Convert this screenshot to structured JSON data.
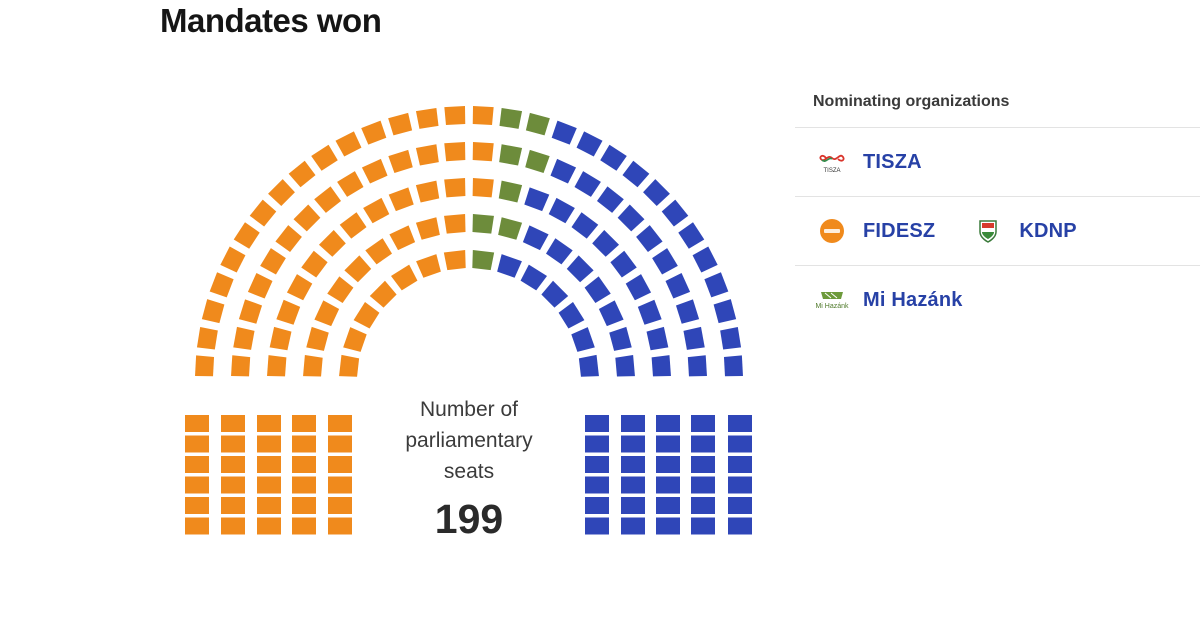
{
  "title": "Mandates won",
  "center": {
    "label": "Number of parliamentary seats",
    "total": "199"
  },
  "legend": {
    "heading": "Nominating organizations",
    "rows": [
      [
        {
          "name": "TISZA",
          "icon": "tisza-logo-icon",
          "color": "#2f46b8"
        }
      ],
      [
        {
          "name": "FIDESZ",
          "icon": "fidesz-logo-icon",
          "color": "#f08a1c"
        },
        {
          "name": "KDNP",
          "icon": "kdnp-shield-icon",
          "color": "#f08a1c"
        }
      ],
      [
        {
          "name": "Mi Hazánk",
          "icon": "mi-hazank-logo-icon",
          "color": "#6d8c3b"
        }
      ]
    ]
  },
  "chart_data": {
    "type": "parliament",
    "total_seats": 199,
    "series": [
      {
        "name": "TISZA",
        "seats": 102,
        "color": "#2f46b8"
      },
      {
        "name": "FIDESZ",
        "seats": 88,
        "color": "#f08a1c"
      },
      {
        "name": "Mi Hazánk",
        "seats": 8,
        "color": "#6d8c3b"
      }
    ],
    "vacant_color": "#ececec"
  }
}
